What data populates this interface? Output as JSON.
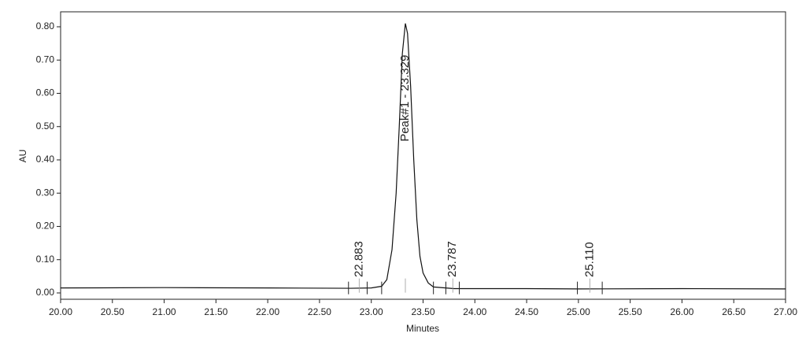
{
  "chart_data": {
    "type": "line",
    "x_label": "Minutes",
    "y_label": "AU",
    "x": [
      20.0,
      21.0,
      22.0,
      22.8,
      23.0,
      23.1,
      23.15,
      23.2,
      23.24,
      23.27,
      23.3,
      23.329,
      23.35,
      23.38,
      23.41,
      23.44,
      23.47,
      23.5,
      23.55,
      23.6,
      23.8,
      24.5,
      25.0,
      26.0,
      27.0
    ],
    "series": [
      {
        "color": "#111111",
        "values": [
          0.015,
          0.016,
          0.015,
          0.014,
          0.015,
          0.02,
          0.04,
          0.13,
          0.3,
          0.5,
          0.72,
          0.81,
          0.78,
          0.62,
          0.4,
          0.22,
          0.11,
          0.06,
          0.03,
          0.018,
          0.013,
          0.013,
          0.012,
          0.013,
          0.012
        ]
      }
    ],
    "xlim": [
      20.0,
      27.0
    ],
    "ylim": [
      -0.019,
      0.845
    ],
    "xticks": [
      {
        "value": 20.0,
        "label": "20.00"
      },
      {
        "value": 20.5,
        "label": "20.50"
      },
      {
        "value": 21.0,
        "label": "21.00"
      },
      {
        "value": 21.5,
        "label": "21.50"
      },
      {
        "value": 22.0,
        "label": "22.00"
      },
      {
        "value": 22.5,
        "label": "22.50"
      },
      {
        "value": 23.0,
        "label": "23.00"
      },
      {
        "value": 23.5,
        "label": "23.50"
      },
      {
        "value": 24.0,
        "label": "24.00"
      },
      {
        "value": 24.5,
        "label": "24.50"
      },
      {
        "value": 25.0,
        "label": "25.00"
      },
      {
        "value": 25.5,
        "label": "25.50"
      },
      {
        "value": 26.0,
        "label": "26.00"
      },
      {
        "value": 26.5,
        "label": "26.50"
      },
      {
        "value": 27.0,
        "label": "27.00"
      }
    ],
    "yticks": [
      {
        "value": 0.0,
        "label": "0.00"
      },
      {
        "value": 0.1,
        "label": "0.10"
      },
      {
        "value": 0.2,
        "label": "0.20"
      },
      {
        "value": 0.3,
        "label": "0.30"
      },
      {
        "value": 0.4,
        "label": "0.40"
      },
      {
        "value": 0.5,
        "label": "0.50"
      },
      {
        "value": 0.6,
        "label": "0.60"
      },
      {
        "value": 0.7,
        "label": "0.70"
      },
      {
        "value": 0.8,
        "label": "0.80"
      }
    ],
    "peaks": [
      {
        "label": "22.883",
        "x": 22.883,
        "start": 22.78,
        "end": 22.96
      },
      {
        "label": "Peak#1 - 23.329",
        "x": 23.329,
        "start": 23.1,
        "end": 23.6
      },
      {
        "label": "23.787",
        "x": 23.787,
        "start": 23.72,
        "end": 23.85
      },
      {
        "label": "25.110",
        "x": 25.11,
        "start": 24.99,
        "end": 25.23
      }
    ]
  }
}
